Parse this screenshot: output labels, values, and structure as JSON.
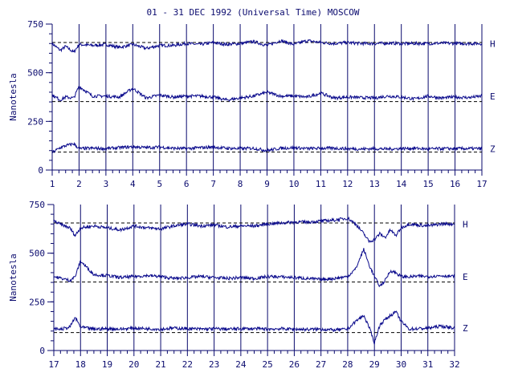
{
  "title": "01 - 31 DEC 1992 (Universal Time) MOSCOW",
  "colors": {
    "trace": "#0a0a8c",
    "axis": "#0a0a6e",
    "reference": "#000000"
  },
  "chart_data": [
    {
      "type": "line",
      "title": "01 - 31 DEC 1992 (Universal Time) MOSCOW",
      "ylabel": "Nanotesla",
      "xlabel": "",
      "xlim": [
        1,
        17
      ],
      "ylim": [
        0,
        750
      ],
      "x_ticks": [
        1,
        2,
        3,
        4,
        5,
        6,
        7,
        8,
        9,
        10,
        11,
        12,
        13,
        14,
        15,
        16,
        17
      ],
      "x_tick_labels": [
        "1",
        "2",
        "3",
        "4",
        "5",
        "6",
        "7",
        "8",
        "9",
        "10",
        "11",
        "12",
        "13",
        "14",
        "15",
        "16",
        "17"
      ],
      "y_ticks": [
        0,
        250,
        500,
        750
      ],
      "y_tick_labels": [
        "0",
        "250",
        "500",
        "750"
      ],
      "grid": "vertical day lines",
      "series": [
        {
          "name": "H",
          "baseline": 655,
          "x": [
            1,
            1.3,
            1.5,
            1.8,
            2,
            2.5,
            3,
            3.5,
            4,
            4.5,
            5,
            5.5,
            6,
            6.5,
            7,
            7.5,
            8,
            8.5,
            9,
            9.5,
            10,
            10.5,
            11,
            11.5,
            12,
            12.5,
            13,
            13.5,
            14,
            14.5,
            15,
            15.5,
            16,
            16.5,
            17
          ],
          "values": [
            650,
            615,
            635,
            605,
            645,
            640,
            645,
            630,
            645,
            625,
            640,
            640,
            650,
            645,
            655,
            645,
            650,
            660,
            640,
            665,
            645,
            665,
            655,
            650,
            655,
            650,
            650,
            652,
            650,
            650,
            650,
            652,
            650,
            650,
            650
          ]
        },
        {
          "name": "E",
          "baseline": 352,
          "x": [
            1,
            1.3,
            1.5,
            1.8,
            2,
            2.5,
            3,
            3.5,
            4,
            4.5,
            5,
            5.5,
            6,
            6.5,
            7,
            7.5,
            8,
            8.5,
            9,
            9.5,
            10,
            10.5,
            11,
            11.5,
            12,
            12.5,
            13,
            13.5,
            14,
            14.5,
            15,
            15.5,
            16,
            16.5,
            17
          ],
          "values": [
            385,
            360,
            375,
            370,
            430,
            380,
            380,
            375,
            420,
            370,
            385,
            375,
            380,
            380,
            375,
            360,
            370,
            380,
            400,
            380,
            380,
            375,
            395,
            370,
            375,
            372,
            370,
            380,
            375,
            365,
            380,
            370,
            375,
            372,
            380
          ]
        },
        {
          "name": "Z",
          "baseline": 92,
          "x": [
            1,
            1.3,
            1.5,
            1.8,
            2,
            2.5,
            3,
            3.5,
            4,
            4.5,
            5,
            5.5,
            6,
            6.5,
            7,
            7.5,
            8,
            8.5,
            9,
            9.5,
            10,
            10.5,
            11,
            11.5,
            12,
            12.5,
            13,
            13.5,
            14,
            14.5,
            15,
            15.5,
            16,
            16.5,
            17
          ],
          "values": [
            90,
            115,
            125,
            135,
            110,
            112,
            110,
            115,
            120,
            115,
            118,
            112,
            110,
            115,
            118,
            112,
            110,
            112,
            100,
            112,
            115,
            110,
            112,
            112,
            110,
            108,
            110,
            108,
            110,
            112,
            108,
            110,
            110,
            110,
            110
          ]
        }
      ]
    },
    {
      "type": "line",
      "title": "",
      "ylabel": "Nanotesla",
      "xlabel": "",
      "xlim": [
        17,
        32
      ],
      "ylim": [
        0,
        750
      ],
      "x_ticks": [
        17,
        18,
        19,
        20,
        21,
        22,
        23,
        24,
        25,
        26,
        27,
        28,
        29,
        30,
        31,
        32
      ],
      "x_tick_labels": [
        "17",
        "18",
        "19",
        "20",
        "21",
        "22",
        "23",
        "24",
        "25",
        "26",
        "27",
        "28",
        "29",
        "30",
        "31",
        "32"
      ],
      "y_ticks": [
        0,
        250,
        500,
        750
      ],
      "y_tick_labels": [
        "0",
        "250",
        "500",
        "750"
      ],
      "grid": "vertical day lines",
      "series": [
        {
          "name": "H",
          "baseline": 655,
          "x": [
            17,
            17.3,
            17.6,
            17.8,
            18,
            18.5,
            19,
            19.5,
            20,
            20.5,
            21,
            21.5,
            22,
            22.5,
            23,
            23.5,
            24,
            24.5,
            25,
            25.5,
            26,
            26.5,
            27,
            27.5,
            28,
            28.3,
            28.6,
            28.8,
            29,
            29.2,
            29.4,
            29.6,
            29.8,
            30,
            30.3,
            30.6,
            31,
            31.5,
            32
          ],
          "values": [
            665,
            645,
            630,
            590,
            630,
            640,
            630,
            620,
            640,
            630,
            625,
            640,
            650,
            640,
            645,
            635,
            640,
            640,
            650,
            655,
            660,
            660,
            665,
            670,
            680,
            650,
            600,
            560,
            570,
            600,
            580,
            620,
            590,
            630,
            650,
            645,
            640,
            650,
            650
          ]
        },
        {
          "name": "E",
          "baseline": 352,
          "x": [
            17,
            17.3,
            17.6,
            17.8,
            18,
            18.5,
            19,
            19.5,
            20,
            20.5,
            21,
            21.5,
            22,
            22.5,
            23,
            23.5,
            24,
            24.5,
            25,
            25.5,
            26,
            26.5,
            27,
            27.5,
            28,
            28.3,
            28.6,
            28.8,
            29,
            29.2,
            29.4,
            29.6,
            29.8,
            30,
            30.3,
            30.6,
            31,
            31.5,
            32
          ],
          "values": [
            380,
            370,
            360,
            380,
            460,
            390,
            385,
            375,
            380,
            385,
            380,
            370,
            375,
            380,
            375,
            370,
            375,
            370,
            380,
            378,
            375,
            370,
            365,
            370,
            380,
            420,
            520,
            440,
            380,
            330,
            360,
            410,
            400,
            380,
            378,
            382,
            380,
            385,
            380
          ]
        },
        {
          "name": "Z",
          "baseline": 92,
          "x": [
            17,
            17.3,
            17.6,
            17.8,
            18,
            18.5,
            19,
            19.5,
            20,
            20.5,
            21,
            21.5,
            22,
            22.5,
            23,
            23.5,
            24,
            24.5,
            25,
            25.5,
            26,
            26.5,
            27,
            27.5,
            28,
            28.3,
            28.6,
            28.8,
            29,
            29.2,
            29.4,
            29.6,
            29.8,
            30,
            30.3,
            30.6,
            31,
            31.5,
            32
          ],
          "values": [
            110,
            110,
            120,
            170,
            120,
            110,
            112,
            110,
            115,
            112,
            110,
            115,
            112,
            110,
            112,
            110,
            112,
            112,
            110,
            112,
            110,
            108,
            110,
            105,
            110,
            150,
            180,
            120,
            40,
            130,
            160,
            180,
            200,
            150,
            110,
            112,
            115,
            125,
            115
          ]
        }
      ]
    }
  ]
}
